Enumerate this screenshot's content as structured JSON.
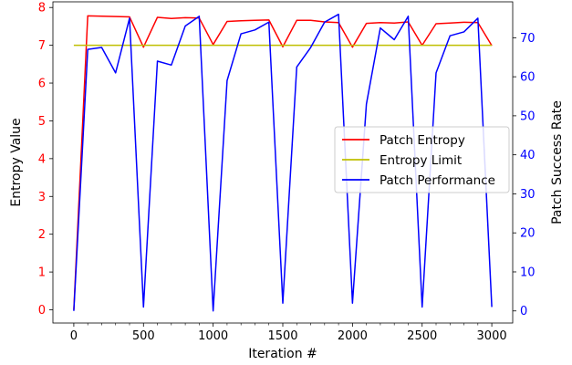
{
  "chart_data": {
    "type": "line",
    "xlabel": "Iteration #",
    "ylabel_left": "Entropy Value",
    "ylabel_right": "Patch Success Rate",
    "xlim": [
      -150,
      3150
    ],
    "ylim_left": [
      -0.35,
      8.15
    ],
    "ylim_right": [
      -3.1,
      79.2
    ],
    "x_ticks": [
      0,
      500,
      1000,
      1500,
      2000,
      2500,
      3000
    ],
    "x_minor_ticks": [
      100,
      200,
      300,
      400,
      600,
      700,
      800,
      900,
      1100,
      1200,
      1300,
      1400,
      1600,
      1700,
      1800,
      1900,
      2100,
      2200,
      2300,
      2400,
      2600,
      2700,
      2800,
      2900
    ],
    "y_left_ticks": [
      0,
      1,
      2,
      3,
      4,
      5,
      6,
      7,
      8
    ],
    "y_right_ticks": [
      0,
      10,
      20,
      30,
      40,
      50,
      60,
      70
    ],
    "left_axis_color": "#ff0000",
    "right_axis_color": "#0000ff",
    "legend_position": "center-right",
    "grid": false,
    "series": [
      {
        "name": "Patch Entropy",
        "axis": "left",
        "color": "#ff0000",
        "x": [
          0,
          100,
          200,
          300,
          400,
          500,
          600,
          700,
          800,
          900,
          1000,
          1100,
          1200,
          1300,
          1400,
          1500,
          1600,
          1700,
          1800,
          1900,
          2000,
          2100,
          2200,
          2300,
          2400,
          2500,
          2600,
          2700,
          2800,
          2900,
          3000
        ],
        "y": [
          0,
          7.78,
          7.77,
          7.76,
          7.75,
          6.95,
          7.74,
          7.71,
          7.73,
          7.72,
          7.02,
          7.63,
          7.65,
          7.66,
          7.67,
          6.96,
          7.66,
          7.66,
          7.62,
          7.6,
          6.95,
          7.58,
          7.6,
          7.59,
          7.62,
          7.0,
          7.57,
          7.59,
          7.61,
          7.6,
          6.99
        ]
      },
      {
        "name": "Entropy Limit",
        "axis": "left",
        "color": "#bfbf00",
        "x": [
          0,
          3000
        ],
        "y": [
          7,
          7
        ]
      },
      {
        "name": "Patch Performance",
        "axis": "right",
        "color": "#0000ff",
        "x": [
          0,
          100,
          200,
          300,
          400,
          500,
          600,
          700,
          800,
          900,
          1000,
          1100,
          1200,
          1300,
          1400,
          1500,
          1600,
          1700,
          1800,
          1900,
          2000,
          2100,
          2200,
          2300,
          2400,
          2500,
          2600,
          2700,
          2800,
          2900,
          3000
        ],
        "y": [
          0,
          67,
          67.5,
          61,
          75,
          1,
          64,
          63,
          73,
          75.5,
          0,
          59,
          71,
          72,
          74,
          2,
          62.5,
          67.5,
          74,
          76,
          2,
          53,
          72.5,
          69.5,
          75.5,
          1,
          61,
          70.5,
          71.5,
          75,
          1
        ]
      }
    ]
  }
}
